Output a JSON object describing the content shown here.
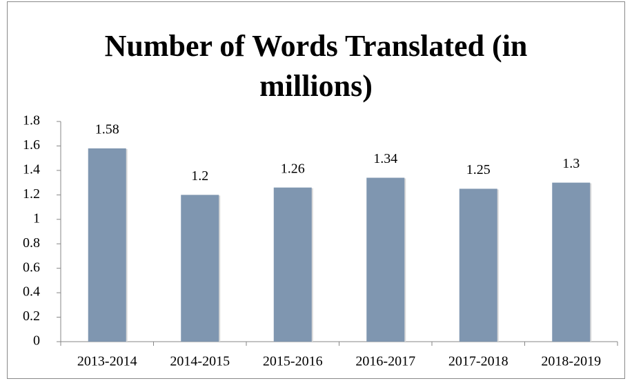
{
  "chart_data": {
    "type": "bar",
    "title": "Number of Words Translated (in millions)",
    "categories": [
      "2013-2014",
      "2014-2015",
      "2015-2016",
      "2016-2017",
      "2017-2018",
      "2018-2019"
    ],
    "values": [
      1.58,
      1.2,
      1.26,
      1.34,
      1.25,
      1.3
    ],
    "color": "#7f96b0",
    "ylim": [
      0,
      1.8
    ],
    "yticks": [
      0,
      0.2,
      0.4,
      0.6,
      0.8,
      1,
      1.2,
      1.4,
      1.6,
      1.8
    ],
    "grid": false
  }
}
